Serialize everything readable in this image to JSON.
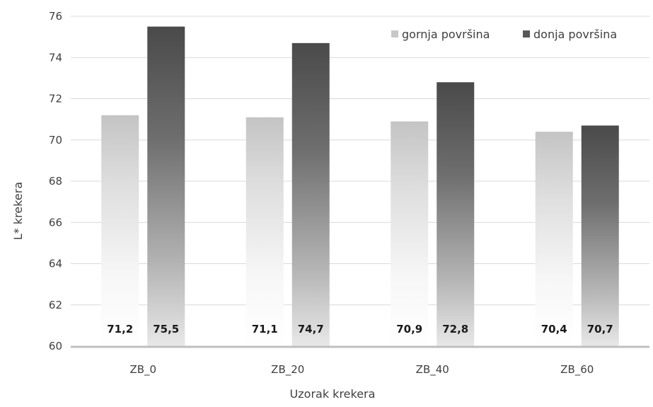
{
  "chart_data": {
    "type": "bar",
    "title": "",
    "xlabel": "Uzorak krekera",
    "ylabel": "L* krekera",
    "categories": [
      "ZB_0",
      "ZB_20",
      "ZB_40",
      "ZB_60"
    ],
    "series": [
      {
        "name": "gornja površina",
        "values": [
          71.2,
          71.1,
          70.9,
          70.4
        ],
        "labels": [
          "71,2",
          "71,1",
          "70,9",
          "70,4"
        ],
        "color": "#c8c8c8"
      },
      {
        "name": "donja površina",
        "values": [
          75.5,
          74.7,
          72.8,
          70.7
        ],
        "labels": [
          "75,5",
          "74,7",
          "72,8",
          "70,7"
        ],
        "color": "#595959"
      }
    ],
    "ylim": [
      60,
      76
    ],
    "yticks": [
      60,
      62,
      64,
      66,
      68,
      70,
      72,
      74,
      76
    ],
    "grid": true,
    "legend_position": "top-right"
  }
}
